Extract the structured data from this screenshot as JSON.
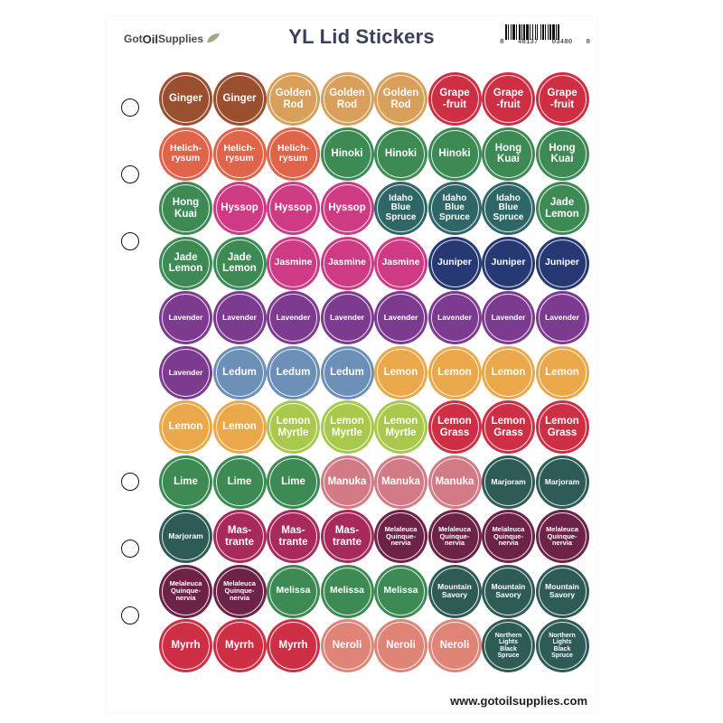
{
  "header": {
    "logo_got": "Got",
    "logo_oil": "Oil",
    "logo_supplies": "Supplies",
    "title": "YL Lid Stickers",
    "barcode_digits": [
      "8",
      "48137",
      "03480",
      "8"
    ]
  },
  "footer": {
    "url": "www.gotoilsupplies.com"
  },
  "colors": {
    "ginger": "#9a4f2f",
    "golden": "#d9a05b",
    "red": "#cf2f45",
    "orange": "#e0644a",
    "green": "#3d8a55",
    "magenta": "#cf3a84",
    "teal": "#2f6667",
    "navy": "#263975",
    "purple": "#7c3b8e",
    "blue": "#6c8fb7",
    "yellow": "#eba84a",
    "lime": "#a8c94b",
    "pink": "#d27b86",
    "darkteal": "#2f5b57",
    "rose": "#a72a5a",
    "plum": "#6d2348",
    "salmon": "#e08477"
  },
  "stickers": [
    [
      {
        "label": "Ginger",
        "color": "ginger"
      },
      {
        "label": "Ginger",
        "color": "ginger"
      },
      {
        "label": "Golden\nRod",
        "color": "golden"
      },
      {
        "label": "Golden\nRod",
        "color": "golden"
      },
      {
        "label": "Golden\nRod",
        "color": "golden"
      },
      {
        "label": "Grape\n-fruit",
        "color": "red"
      },
      {
        "label": "Grape\n-fruit",
        "color": "red"
      },
      {
        "label": "Grape\n-fruit",
        "color": "red"
      }
    ],
    [
      {
        "label": "Helich-\nrysum",
        "color": "orange"
      },
      {
        "label": "Helich-\nrysum",
        "color": "orange"
      },
      {
        "label": "Helich-\nrysum",
        "color": "orange"
      },
      {
        "label": "Hinoki",
        "color": "green"
      },
      {
        "label": "Hinoki",
        "color": "green"
      },
      {
        "label": "Hinoki",
        "color": "green"
      },
      {
        "label": "Hong\nKuai",
        "color": "green"
      },
      {
        "label": "Hong\nKuai",
        "color": "green"
      }
    ],
    [
      {
        "label": "Hong\nKuai",
        "color": "green"
      },
      {
        "label": "Hyssop",
        "color": "magenta"
      },
      {
        "label": "Hyssop",
        "color": "magenta"
      },
      {
        "label": "Hyssop",
        "color": "magenta"
      },
      {
        "label": "Idaho\nBlue\nSpruce",
        "color": "teal"
      },
      {
        "label": "Idaho\nBlue\nSpruce",
        "color": "teal"
      },
      {
        "label": "Idaho\nBlue\nSpruce",
        "color": "teal"
      },
      {
        "label": "Jade\nLemon",
        "color": "green"
      }
    ],
    [
      {
        "label": "Jade\nLemon",
        "color": "green"
      },
      {
        "label": "Jade\nLemon",
        "color": "green"
      },
      {
        "label": "Jasmine",
        "color": "magenta"
      },
      {
        "label": "Jasmine",
        "color": "magenta"
      },
      {
        "label": "Jasmine",
        "color": "magenta"
      },
      {
        "label": "Juniper",
        "color": "navy"
      },
      {
        "label": "Juniper",
        "color": "navy"
      },
      {
        "label": "Juniper",
        "color": "navy"
      }
    ],
    [
      {
        "label": "Lavender",
        "color": "purple"
      },
      {
        "label": "Lavender",
        "color": "purple"
      },
      {
        "label": "Lavender",
        "color": "purple"
      },
      {
        "label": "Lavender",
        "color": "purple"
      },
      {
        "label": "Lavender",
        "color": "purple"
      },
      {
        "label": "Lavender",
        "color": "purple"
      },
      {
        "label": "Lavender",
        "color": "purple"
      },
      {
        "label": "Lavender",
        "color": "purple"
      }
    ],
    [
      {
        "label": "Lavender",
        "color": "purple"
      },
      {
        "label": "Ledum",
        "color": "blue"
      },
      {
        "label": "Ledum",
        "color": "blue"
      },
      {
        "label": "Ledum",
        "color": "blue"
      },
      {
        "label": "Lemon",
        "color": "yellow"
      },
      {
        "label": "Lemon",
        "color": "yellow"
      },
      {
        "label": "Lemon",
        "color": "yellow"
      },
      {
        "label": "Lemon",
        "color": "yellow"
      }
    ],
    [
      {
        "label": "Lemon",
        "color": "yellow"
      },
      {
        "label": "Lemon",
        "color": "yellow"
      },
      {
        "label": "Lemon\nMyrtle",
        "color": "lime"
      },
      {
        "label": "Lemon\nMyrtle",
        "color": "lime"
      },
      {
        "label": "Lemon\nMyrtle",
        "color": "lime"
      },
      {
        "label": "Lemon\nGrass",
        "color": "red"
      },
      {
        "label": "Lemon\nGrass",
        "color": "red"
      },
      {
        "label": "Lemon\nGrass",
        "color": "red"
      }
    ],
    [
      {
        "label": "Lime",
        "color": "green"
      },
      {
        "label": "Lime",
        "color": "green"
      },
      {
        "label": "Lime",
        "color": "green"
      },
      {
        "label": "Manuka",
        "color": "pink"
      },
      {
        "label": "Manuka",
        "color": "pink"
      },
      {
        "label": "Manuka",
        "color": "pink"
      },
      {
        "label": "Marjoram",
        "color": "darkteal"
      },
      {
        "label": "Marjoram",
        "color": "darkteal"
      }
    ],
    [
      {
        "label": "Marjoram",
        "color": "darkteal"
      },
      {
        "label": "Mas-\ntrante",
        "color": "rose"
      },
      {
        "label": "Mas-\ntrante",
        "color": "rose"
      },
      {
        "label": "Mas-\ntrante",
        "color": "rose"
      },
      {
        "label": "Melaleuca\nQuinque-\nnervia",
        "color": "plum"
      },
      {
        "label": "Melaleuca\nQuinque-\nnervia",
        "color": "plum"
      },
      {
        "label": "Melaleuca\nQuinque-\nnervia",
        "color": "plum"
      },
      {
        "label": "Melaleuca\nQuinque-\nnervia",
        "color": "plum"
      }
    ],
    [
      {
        "label": "Melaleuca\nQuinque-\nnervia",
        "color": "plum"
      },
      {
        "label": "Melaleuca\nQuinque-\nnervia",
        "color": "plum"
      },
      {
        "label": "Melissa",
        "color": "green"
      },
      {
        "label": "Melissa",
        "color": "green"
      },
      {
        "label": "Melissa",
        "color": "green"
      },
      {
        "label": "Mountain\nSavory",
        "color": "darkteal"
      },
      {
        "label": "Mountain\nSavory",
        "color": "darkteal"
      },
      {
        "label": "Mountain\nSavory",
        "color": "darkteal"
      }
    ],
    [
      {
        "label": "Myrrh",
        "color": "red"
      },
      {
        "label": "Myrrh",
        "color": "red"
      },
      {
        "label": "Myrrh",
        "color": "red"
      },
      {
        "label": "Neroli",
        "color": "salmon"
      },
      {
        "label": "Neroli",
        "color": "salmon"
      },
      {
        "label": "Neroli",
        "color": "salmon"
      },
      {
        "label": "Northern\nLights\nBlack\nSpruce",
        "color": "darkteal"
      },
      {
        "label": "Northern\nLights\nBlack\nSpruce",
        "color": "darkteal"
      }
    ]
  ]
}
